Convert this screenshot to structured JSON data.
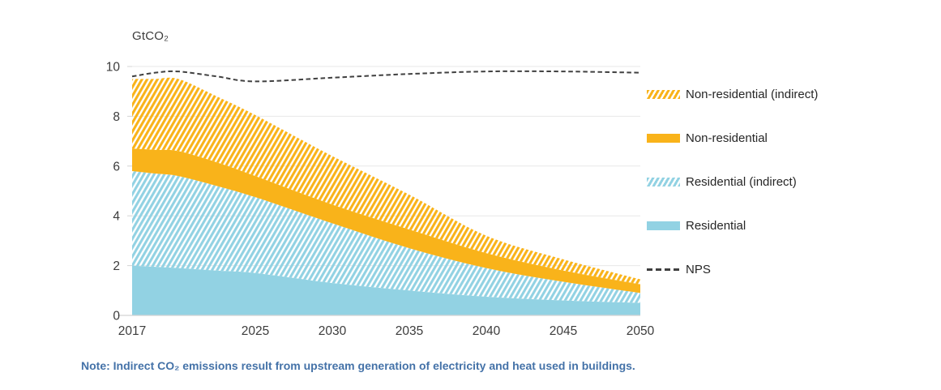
{
  "chart_data": {
    "type": "area",
    "stacked": true,
    "unit_label": "GtCO₂",
    "x": [
      2017,
      2018.5,
      2020,
      2022.5,
      2025,
      2030,
      2035,
      2040,
      2045,
      2050
    ],
    "xlim": [
      2017,
      2050
    ],
    "ylim": [
      0,
      10
    ],
    "y_ticks": [
      0,
      2,
      4,
      6,
      8,
      10
    ],
    "x_ticks": [
      2017,
      2025,
      2030,
      2035,
      2040,
      2045,
      2050
    ],
    "grid": "horizontal",
    "legend_position": "right",
    "colors": {
      "yellow": "#F9B31A",
      "blue": "#92D2E3",
      "nps_line": "#404040",
      "grid": "#E7E7E7",
      "axis": "#D4D4D4",
      "text": "#3C3C3C",
      "note": "#4472A8"
    },
    "series": [
      {
        "name": "Residential",
        "style": "solid",
        "color_key": "blue",
        "values": [
          2.0,
          1.95,
          1.9,
          1.8,
          1.7,
          1.3,
          1.0,
          0.75,
          0.6,
          0.5
        ]
      },
      {
        "name": "Residential (indirect)",
        "style": "hatch",
        "color_key": "blue",
        "values": [
          3.8,
          3.75,
          3.7,
          3.4,
          3.05,
          2.4,
          1.7,
          1.15,
          0.75,
          0.4
        ]
      },
      {
        "name": "Non-residential",
        "style": "solid",
        "color_key": "yellow",
        "values": [
          0.9,
          0.95,
          1.0,
          0.95,
          0.85,
          0.75,
          0.75,
          0.6,
          0.45,
          0.35
        ]
      },
      {
        "name": "Non-residential (indirect)",
        "style": "hatch",
        "color_key": "yellow",
        "values": [
          2.8,
          2.85,
          2.9,
          2.65,
          2.45,
          1.95,
          1.4,
          0.7,
          0.45,
          0.2
        ]
      }
    ],
    "line_series": [
      {
        "name": "NPS",
        "style": "dashed",
        "color_key": "nps_line",
        "values": [
          9.6,
          9.75,
          9.8,
          9.6,
          9.4,
          9.55,
          9.7,
          9.8,
          9.8,
          9.75
        ]
      }
    ],
    "legend": [
      {
        "label": "Non-residential (indirect)",
        "swatch": "yellow-hatch"
      },
      {
        "label": "Non-residential",
        "swatch": "yellow-solid"
      },
      {
        "label": "Residential (indirect)",
        "swatch": "blue-hatch"
      },
      {
        "label": "Residential",
        "swatch": "blue-solid"
      },
      {
        "label": "NPS",
        "swatch": "dashed-line"
      }
    ]
  },
  "note": {
    "text": "Note: Indirect CO₂ emissions result from upstream generation of electricity and heat used in buildings."
  }
}
